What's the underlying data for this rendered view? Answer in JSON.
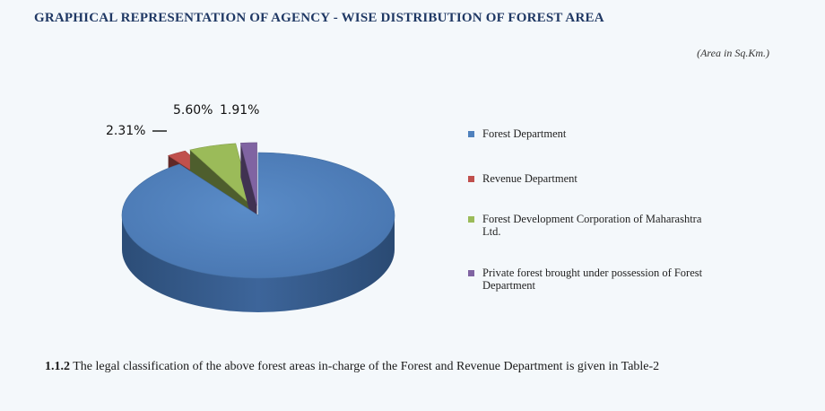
{
  "title": "GRAPHICAL REPRESENTATION OF AGENCY - WISE DISTRIBUTION OF FOREST AREA",
  "unit_note": "(Area in Sq.Km.)",
  "chart_data": {
    "type": "pie",
    "title": "GRAPHICAL REPRESENTATION OF AGENCY - WISE DISTRIBUTION OF FOREST AREA",
    "three_d": true,
    "exploded": true,
    "legend_position": "right",
    "slices": [
      {
        "label": "Forest Department",
        "value": 90.18,
        "color": "#4f81bd",
        "data_label": ""
      },
      {
        "label": "Revenue Department",
        "value": 2.31,
        "color": "#c0504d",
        "data_label": "2.31%"
      },
      {
        "label": "Forest Development Corporation of Maharashtra Ltd.",
        "value": 5.6,
        "color": "#9bbb59",
        "data_label": "5.60%"
      },
      {
        "label": "Private forest brought under possession of Forest Department",
        "value": 1.91,
        "color": "#8064a2",
        "data_label": "1.91%"
      }
    ]
  },
  "legend": [
    {
      "label": "Forest Department",
      "color": "#4f81bd"
    },
    {
      "label": "Revenue Department",
      "color": "#c0504d"
    },
    {
      "label": "Forest Development Corporation of Maharashtra Ltd.",
      "color": "#9bbb59"
    },
    {
      "label": "Private forest brought under possession of Forest Department",
      "color": "#8064a2"
    }
  ],
  "footer": {
    "number": "1.1.2",
    "text": " The legal classification of the above forest areas in-charge of the Forest and Revenue Department is given in Table-2"
  }
}
